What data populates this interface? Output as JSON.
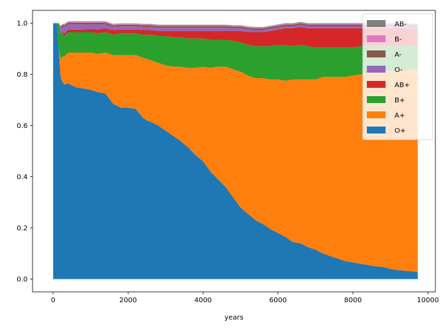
{
  "chart_data": {
    "type": "area",
    "stacked": true,
    "xlabel": "years",
    "ylabel": "",
    "title": "",
    "xlim": [
      -550,
      10200
    ],
    "ylim": [
      -0.05,
      1.05
    ],
    "xticks": [
      0,
      2000,
      4000,
      6000,
      8000,
      10000
    ],
    "yticks": [
      0.0,
      0.2,
      0.4,
      0.6,
      0.8,
      1.0
    ],
    "grid": false,
    "legend_position": "top-right",
    "legend_order": [
      "AB-",
      "B-",
      "A-",
      "O-",
      "AB+",
      "B+",
      "A+",
      "O+"
    ],
    "x": [
      0,
      10,
      100,
      150,
      200,
      250,
      300,
      400,
      600,
      800,
      1000,
      1200,
      1400,
      1500,
      1600,
      1800,
      2000,
      2200,
      2400,
      2500,
      2600,
      2800,
      3000,
      3200,
      3400,
      3600,
      3800,
      4000,
      4200,
      4400,
      4600,
      4800,
      5000,
      5200,
      5400,
      5600,
      5800,
      6000,
      6200,
      6400,
      6600,
      6800,
      7000,
      7200,
      7400,
      7600,
      7800,
      8000,
      8200,
      8400,
      8600,
      8800,
      9000,
      9200,
      9400,
      9600,
      9730
    ],
    "series": [
      {
        "name": "O+",
        "color": "#1f77b4",
        "values": [
          1.0,
          1.0,
          1.0,
          0.9,
          0.79,
          0.77,
          0.76,
          0.765,
          0.75,
          0.745,
          0.74,
          0.73,
          0.725,
          0.705,
          0.685,
          0.67,
          0.67,
          0.665,
          0.63,
          0.62,
          0.615,
          0.6,
          0.58,
          0.56,
          0.54,
          0.515,
          0.485,
          0.46,
          0.42,
          0.39,
          0.36,
          0.32,
          0.28,
          0.255,
          0.23,
          0.215,
          0.195,
          0.18,
          0.165,
          0.145,
          0.14,
          0.125,
          0.115,
          0.1,
          0.09,
          0.08,
          0.07,
          0.065,
          0.06,
          0.055,
          0.05,
          0.048,
          0.04,
          0.035,
          0.032,
          0.03,
          0.028
        ]
      },
      {
        "name": "A+",
        "color": "#ff7f0e",
        "values": [
          0.0,
          0.0,
          0.0,
          0.0,
          0.07,
          0.1,
          0.11,
          0.12,
          0.135,
          0.14,
          0.145,
          0.15,
          0.16,
          0.175,
          0.19,
          0.205,
          0.205,
          0.21,
          0.235,
          0.24,
          0.24,
          0.245,
          0.255,
          0.27,
          0.29,
          0.31,
          0.34,
          0.37,
          0.405,
          0.44,
          0.47,
          0.5,
          0.53,
          0.54,
          0.555,
          0.57,
          0.585,
          0.6,
          0.61,
          0.635,
          0.64,
          0.655,
          0.665,
          0.69,
          0.7,
          0.71,
          0.72,
          0.73,
          0.74,
          0.75,
          0.76,
          0.762,
          0.775,
          0.78,
          0.785,
          0.79,
          0.792
        ]
      },
      {
        "name": "B+",
        "color": "#2ca02c",
        "values": [
          0.0,
          0.0,
          0.0,
          0.1,
          0.1,
          0.09,
          0.08,
          0.08,
          0.08,
          0.08,
          0.08,
          0.08,
          0.08,
          0.08,
          0.08,
          0.085,
          0.085,
          0.085,
          0.09,
          0.095,
          0.1,
          0.105,
          0.115,
          0.115,
          0.115,
          0.115,
          0.115,
          0.11,
          0.11,
          0.105,
          0.105,
          0.11,
          0.115,
          0.12,
          0.125,
          0.125,
          0.13,
          0.135,
          0.14,
          0.13,
          0.135,
          0.13,
          0.125,
          0.115,
          0.115,
          0.115,
          0.115,
          0.11,
          0.11,
          0.105,
          0.1,
          0.1,
          0.095,
          0.095,
          0.095,
          0.09,
          0.09
        ]
      },
      {
        "name": "AB+",
        "color": "#d62728",
        "values": [
          0.0,
          0.0,
          0.0,
          0.0,
          0.0,
          0.005,
          0.01,
          0.01,
          0.01,
          0.01,
          0.012,
          0.015,
          0.015,
          0.015,
          0.018,
          0.015,
          0.015,
          0.015,
          0.018,
          0.018,
          0.018,
          0.02,
          0.02,
          0.025,
          0.025,
          0.03,
          0.03,
          0.03,
          0.035,
          0.035,
          0.035,
          0.04,
          0.045,
          0.05,
          0.055,
          0.055,
          0.06,
          0.06,
          0.065,
          0.07,
          0.07,
          0.07,
          0.075,
          0.075,
          0.075,
          0.075,
          0.075,
          0.075,
          0.07,
          0.07,
          0.07,
          0.07,
          0.07,
          0.07,
          0.068,
          0.068,
          0.068
        ]
      },
      {
        "name": "O-",
        "color": "#9467bd",
        "values": [
          0.0,
          0.0,
          0.0,
          0.0,
          0.02,
          0.02,
          0.025,
          0.02,
          0.02,
          0.02,
          0.018,
          0.02,
          0.015,
          0.015,
          0.012,
          0.012,
          0.012,
          0.012,
          0.012,
          0.012,
          0.012,
          0.012,
          0.012,
          0.012,
          0.012,
          0.012,
          0.012,
          0.012,
          0.012,
          0.012,
          0.012,
          0.01,
          0.01,
          0.01,
          0.008,
          0.008,
          0.008,
          0.008,
          0.008,
          0.008,
          0.008,
          0.008,
          0.008,
          0.008,
          0.008,
          0.008,
          0.008,
          0.008,
          0.008,
          0.008,
          0.008,
          0.008,
          0.008,
          0.008,
          0.008,
          0.008,
          0.008
        ]
      },
      {
        "name": "A-",
        "color": "#8c564b",
        "values": [
          0.0,
          0.0,
          0.0,
          0.0,
          0.005,
          0.007,
          0.007,
          0.007,
          0.007,
          0.007,
          0.007,
          0.007,
          0.007,
          0.007,
          0.007,
          0.007,
          0.007,
          0.007,
          0.007,
          0.007,
          0.007,
          0.007,
          0.007,
          0.007,
          0.007,
          0.007,
          0.007,
          0.007,
          0.007,
          0.007,
          0.007,
          0.007,
          0.007,
          0.007,
          0.007,
          0.007,
          0.007,
          0.007,
          0.007,
          0.007,
          0.007,
          0.007,
          0.007,
          0.007,
          0.007,
          0.007,
          0.007,
          0.007,
          0.007,
          0.007,
          0.007,
          0.007,
          0.007,
          0.007,
          0.007,
          0.007,
          0.007
        ]
      },
      {
        "name": "B-",
        "color": "#e377c2",
        "values": [
          0.0,
          0.0,
          0.0,
          0.0,
          0.003,
          0.003,
          0.003,
          0.003,
          0.003,
          0.003,
          0.003,
          0.003,
          0.003,
          0.003,
          0.003,
          0.003,
          0.003,
          0.003,
          0.003,
          0.003,
          0.003,
          0.003,
          0.003,
          0.003,
          0.003,
          0.003,
          0.003,
          0.003,
          0.003,
          0.003,
          0.003,
          0.003,
          0.003,
          0.003,
          0.003,
          0.003,
          0.003,
          0.003,
          0.003,
          0.003,
          0.003,
          0.003,
          0.003,
          0.003,
          0.003,
          0.003,
          0.003,
          0.003,
          0.003,
          0.003,
          0.003,
          0.003,
          0.003,
          0.003,
          0.003,
          0.003,
          0.003
        ]
      },
      {
        "name": "AB-",
        "color": "#7f7f7f",
        "values": [
          0.0,
          0.0,
          0.0,
          0.0,
          0.002,
          0.002,
          0.002,
          0.002,
          0.002,
          0.002,
          0.002,
          0.002,
          0.002,
          0.002,
          0.002,
          0.002,
          0.002,
          0.002,
          0.002,
          0.002,
          0.002,
          0.002,
          0.002,
          0.002,
          0.002,
          0.002,
          0.002,
          0.002,
          0.002,
          0.002,
          0.002,
          0.002,
          0.002,
          0.002,
          0.002,
          0.002,
          0.002,
          0.002,
          0.002,
          0.002,
          0.002,
          0.002,
          0.002,
          0.002,
          0.002,
          0.002,
          0.002,
          0.002,
          0.002,
          0.002,
          0.002,
          0.002,
          0.002,
          0.002,
          0.002,
          0.002,
          0.002
        ]
      }
    ]
  }
}
